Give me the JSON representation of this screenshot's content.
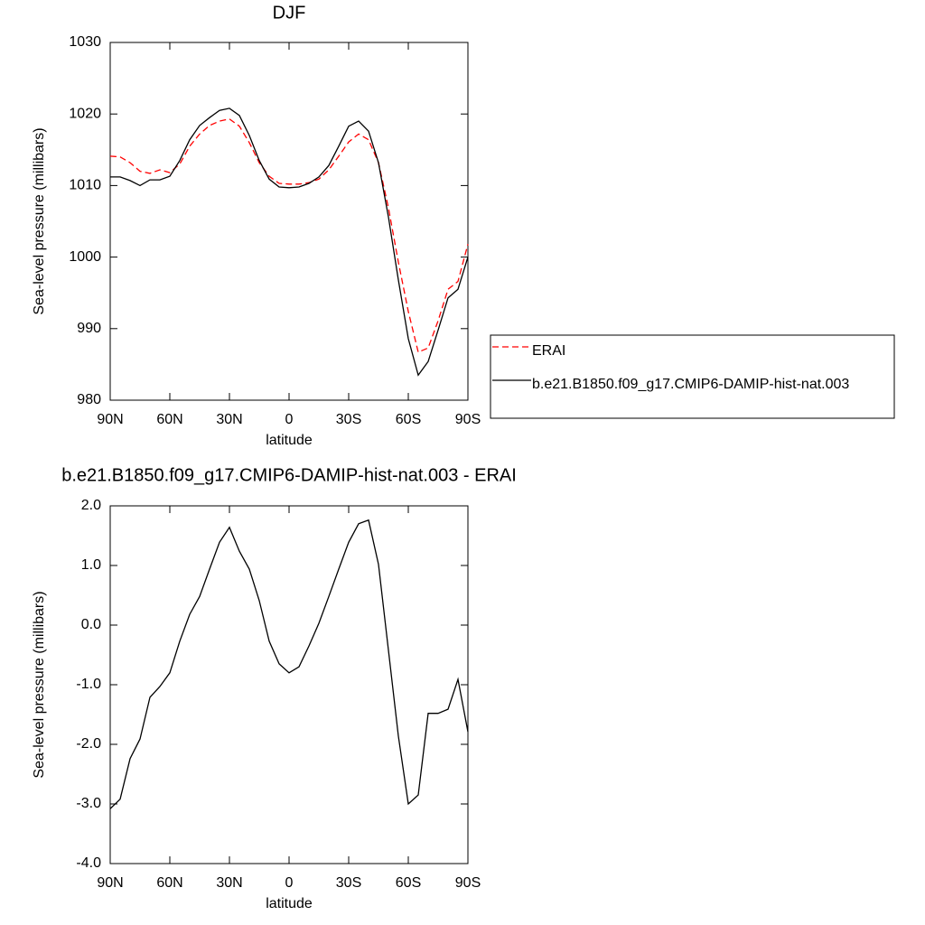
{
  "chart_data": [
    {
      "type": "line",
      "title": "DJF",
      "x_label": "latitude",
      "y_label": "Sea-level pressure (millibars)",
      "x": [
        90,
        85,
        80,
        75,
        70,
        65,
        60,
        55,
        50,
        45,
        40,
        35,
        30,
        25,
        20,
        15,
        10,
        5,
        0,
        -5,
        -10,
        -15,
        -20,
        -25,
        -30,
        -35,
        -40,
        -45,
        -50,
        -55,
        -60,
        -65,
        -70,
        -75,
        -80,
        -85,
        -90
      ],
      "series": [
        {
          "name": "ERAI",
          "color": "#ff0000",
          "line_style": "dashed",
          "values": [
            1014.1,
            1014.0,
            1013.2,
            1012.0,
            1011.7,
            1012.2,
            1011.8,
            1013.0,
            1015.5,
            1017.2,
            1018.4,
            1019.0,
            1019.3,
            1018.3,
            1016.0,
            1013.2,
            1011.3,
            1010.3,
            1010.2,
            1010.2,
            1010.4,
            1010.9,
            1012.2,
            1014.1,
            1016.1,
            1017.2,
            1016.4,
            1013.2,
            1006.9,
            999.3,
            992.4,
            986.7,
            987.3,
            991.1,
            995.5,
            996.6,
            1001.8
          ]
        },
        {
          "name": "b.e21.B1850.f09_g17.CMIP6-DAMIP-hist-nat.003",
          "color": "#000000",
          "line_style": "solid",
          "values": [
            1011.2,
            1011.2,
            1010.7,
            1010.0,
            1010.8,
            1010.8,
            1011.3,
            1013.5,
            1016.4,
            1018.4,
            1019.5,
            1020.5,
            1020.8,
            1019.8,
            1017.0,
            1013.5,
            1010.9,
            1009.8,
            1009.7,
            1009.8,
            1010.3,
            1011.2,
            1012.8,
            1015.5,
            1018.3,
            1019.0,
            1017.6,
            1013.2,
            1005.6,
            996.8,
            988.6,
            983.5,
            985.4,
            989.8,
            994.3,
            995.5,
            1000.0
          ]
        }
      ],
      "xlim": [
        90,
        -90
      ],
      "xticks": [
        {
          "value": 90,
          "label": "90N"
        },
        {
          "value": 60,
          "label": "60N"
        },
        {
          "value": 30,
          "label": "30N"
        },
        0,
        {
          "value": -30,
          "label": "30S"
        },
        {
          "value": -60,
          "label": "60S"
        },
        {
          "value": -90,
          "label": "90S"
        }
      ],
      "ylim": [
        980,
        1030
      ],
      "yticks": [
        980,
        990,
        1000,
        1010,
        1020,
        1030
      ],
      "legend": "outside-right"
    },
    {
      "type": "line",
      "title": "b.e21.B1850.f09_g17.CMIP6-DAMIP-hist-nat.003 - ERAI",
      "x_label": "latitude",
      "y_label": "Sea-level pressure (millibars)",
      "x": [
        90,
        85,
        80,
        75,
        70,
        65,
        60,
        55,
        50,
        45,
        40,
        35,
        30,
        25,
        20,
        15,
        10,
        5,
        0,
        -5,
        -10,
        -15,
        -20,
        -25,
        -30,
        -35,
        -40,
        -45,
        -50,
        -55,
        -60,
        -65,
        -70,
        -75,
        -80,
        -85,
        -90
      ],
      "color": "#000000",
      "values": [
        -3.08,
        -2.92,
        -2.24,
        -1.91,
        -1.21,
        -1.03,
        -0.8,
        -0.27,
        0.18,
        0.48,
        0.94,
        1.39,
        1.64,
        1.24,
        0.94,
        0.41,
        -0.27,
        -0.65,
        -0.8,
        -0.7,
        -0.35,
        0.03,
        0.48,
        0.94,
        1.39,
        1.7,
        1.76,
        1.02,
        -0.42,
        -1.86,
        -3.0,
        -2.85,
        -1.48,
        -1.48,
        -1.41,
        -0.91,
        -1.79
      ],
      "xlim": [
        90,
        -90
      ],
      "xticks": [
        {
          "value": 90,
          "label": "90N"
        },
        {
          "value": 60,
          "label": "60N"
        },
        {
          "value": 30,
          "label": "30N"
        },
        0,
        {
          "value": -30,
          "label": "30S"
        },
        {
          "value": -60,
          "label": "60S"
        },
        {
          "value": -90,
          "label": "90S"
        }
      ],
      "ylim": [
        -4,
        2
      ],
      "yticks": [
        {
          "value": -4,
          "label": "-4.0"
        },
        {
          "value": -3,
          "label": "-3.0"
        },
        {
          "value": -2,
          "label": "-2.0"
        },
        {
          "value": -1,
          "label": "-1.0"
        },
        {
          "value": 0,
          "label": "0.0"
        },
        {
          "value": 1,
          "label": "1.0"
        },
        {
          "value": 2,
          "label": "2.0"
        }
      ]
    }
  ]
}
